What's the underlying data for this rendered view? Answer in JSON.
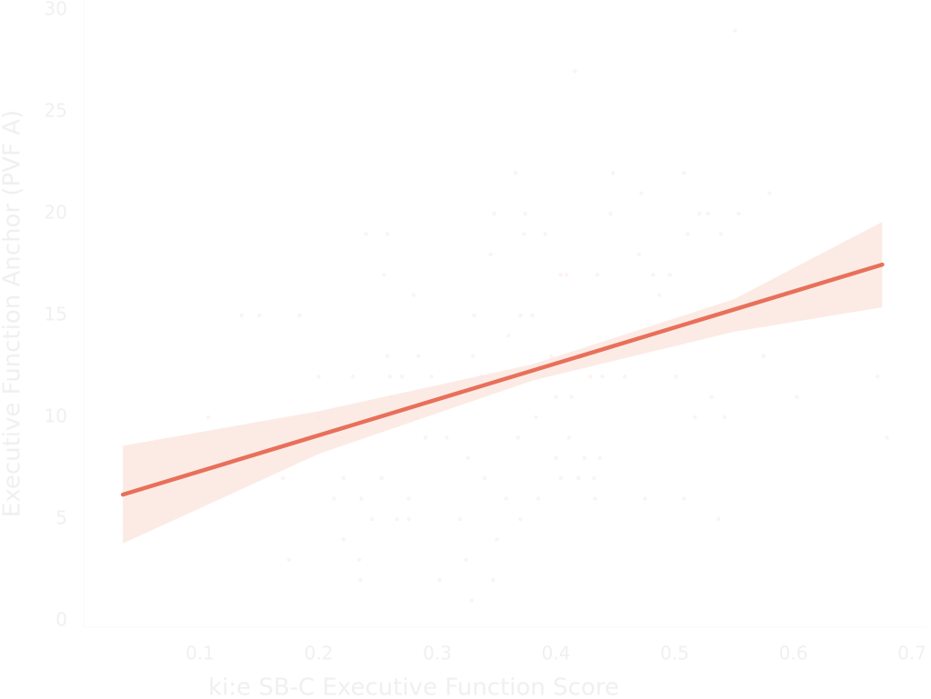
{
  "chart_data": {
    "type": "scatter",
    "x_label": "ki:e SB-C Executive Function Score",
    "y_label": "Executive Function Anchor (PVF A)",
    "xlim": [
      0,
      0.712
    ],
    "ylim": [
      -0.3,
      30.5
    ],
    "xticks": [
      0.1,
      0.2,
      0.3,
      0.4,
      0.5,
      0.6,
      0.7
    ],
    "yticks": [
      0,
      5,
      10,
      15,
      20,
      25,
      30
    ],
    "point_color": "#fdf3f0",
    "x": [
      0.107,
      0.135,
      0.15,
      0.175,
      0.184,
      0.17,
      0.2,
      0.2,
      0.213,
      0.219,
      0.221,
      0.221,
      0.229,
      0.234,
      0.235,
      0.236,
      0.24,
      0.245,
      0.253,
      0.255,
      0.258,
      0.258,
      0.26,
      0.261,
      0.266,
      0.27,
      0.276,
      0.276,
      0.28,
      0.282,
      0.284,
      0.29,
      0.295,
      0.302,
      0.308,
      0.319,
      0.324,
      0.326,
      0.329,
      0.33,
      0.331,
      0.337,
      0.34,
      0.345,
      0.347,
      0.348,
      0.35,
      0.358,
      0.36,
      0.366,
      0.368,
      0.37,
      0.37,
      0.373,
      0.374,
      0.38,
      0.383,
      0.385,
      0.391,
      0.396,
      0.4,
      0.4,
      0.404,
      0.404,
      0.409,
      0.411,
      0.413,
      0.416,
      0.419,
      0.424,
      0.429,
      0.432,
      0.433,
      0.435,
      0.437,
      0.439,
      0.446,
      0.448,
      0.458,
      0.47,
      0.472,
      0.475,
      0.482,
      0.487,
      0.496,
      0.501,
      0.508,
      0.508,
      0.511,
      0.517,
      0.521,
      0.528,
      0.531,
      0.537,
      0.539,
      0.542,
      0.551,
      0.554,
      0.575,
      0.58,
      0.603,
      0.625,
      0.671,
      0.679
    ],
    "y": [
      10,
      15,
      15,
      3,
      15,
      7,
      10,
      12,
      6,
      9,
      7,
      4,
      12,
      3,
      2,
      6,
      19,
      5,
      7,
      17,
      19,
      13,
      12,
      11,
      5,
      12,
      5,
      6,
      16,
      10,
      13,
      9,
      12,
      2,
      9,
      5,
      3,
      8,
      1,
      13,
      15,
      12,
      7,
      18,
      2,
      20,
      4,
      6,
      14,
      22,
      9,
      5,
      15,
      19,
      20,
      15,
      10,
      6,
      19,
      13,
      8,
      11,
      17,
      7,
      17,
      9,
      11,
      27,
      7,
      8,
      12,
      7,
      6,
      17,
      8,
      12,
      20,
      22,
      12,
      18,
      21,
      6,
      17,
      16,
      17,
      12,
      22,
      6,
      19,
      10,
      20,
      20,
      11,
      5,
      19,
      10,
      29,
      20,
      13,
      21,
      11,
      17,
      12,
      9
    ],
    "fit": {
      "color": "#e8705a",
      "x": [
        0.035,
        0.675
      ],
      "y": [
        6.2,
        17.5
      ]
    },
    "band": {
      "color": "#fbe2da",
      "x": [
        0.035,
        0.2,
        0.38,
        0.55,
        0.675
      ],
      "lower": [
        3.8,
        8.2,
        11.8,
        14.2,
        15.4
      ],
      "upper": [
        8.6,
        10.3,
        12.6,
        15.8,
        19.6
      ]
    }
  }
}
